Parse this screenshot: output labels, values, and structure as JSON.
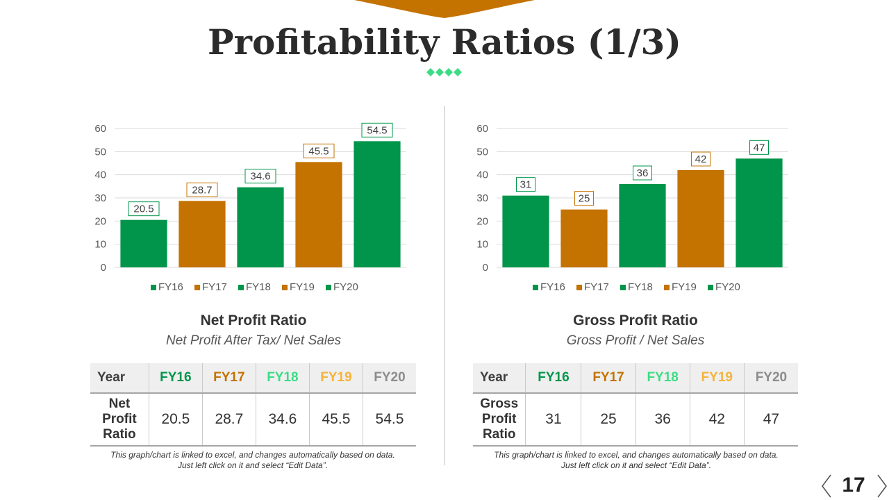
{
  "slide": {
    "title": "Profitability Ratios (1/3)",
    "page_number": "17",
    "colors": {
      "green": "#00954a",
      "orange": "#c47200",
      "light_green": "#3ddc84",
      "yellow": "#f5b33c",
      "grey": "#8c8c8c"
    }
  },
  "left": {
    "caption_title": "Net Profit Ratio",
    "caption_subtitle": "Net Profit After Tax/ Net Sales",
    "table": {
      "header": [
        "Year",
        "FY16",
        "FY17",
        "FY18",
        "FY19",
        "FY20"
      ],
      "row_label_lines": [
        "Net",
        "Profit",
        "Ratio"
      ],
      "values": [
        "20.5",
        "28.7",
        "34.6",
        "45.5",
        "54.5"
      ]
    },
    "note_lines": [
      "This graph/chart is linked to excel, and changes automatically based on data.",
      "Just left click on it and select “Edit Data”."
    ]
  },
  "right": {
    "caption_title": "Gross Profit Ratio",
    "caption_subtitle": "Gross Profit / Net Sales",
    "table": {
      "header": [
        "Year",
        "FY16",
        "FY17",
        "FY18",
        "FY19",
        "FY20"
      ],
      "row_label_lines": [
        "Gross",
        "Profit",
        "Ratio"
      ],
      "values": [
        "31",
        "25",
        "36",
        "42",
        "47"
      ]
    },
    "note_lines": [
      "This graph/chart is linked to excel, and changes automatically based on data.",
      "Just left click on it and select “Edit Data”."
    ]
  },
  "chart_data": [
    {
      "type": "bar",
      "categories": [
        "FY16",
        "FY17",
        "FY18",
        "FY19",
        "FY20"
      ],
      "values": [
        20.5,
        28.7,
        34.6,
        45.5,
        54.5
      ],
      "bar_colors": [
        "#00954a",
        "#c47200",
        "#00954a",
        "#c47200",
        "#00954a"
      ],
      "ylim": [
        0,
        60
      ],
      "yticks": [
        0,
        10,
        20,
        30,
        40,
        50,
        60
      ],
      "grid": true,
      "legend": "bottom",
      "legend_entries": [
        "FY16",
        "FY17",
        "FY18",
        "FY19",
        "FY20"
      ],
      "data_labels": [
        "20.5",
        "28.7",
        "34.6",
        "45.5",
        "54.5"
      ]
    },
    {
      "type": "bar",
      "categories": [
        "FY16",
        "FY17",
        "FY18",
        "FY19",
        "FY20"
      ],
      "values": [
        31,
        25,
        36,
        42,
        47
      ],
      "bar_colors": [
        "#00954a",
        "#c47200",
        "#00954a",
        "#c47200",
        "#00954a"
      ],
      "ylim": [
        0,
        60
      ],
      "yticks": [
        0,
        10,
        20,
        30,
        40,
        50,
        60
      ],
      "grid": true,
      "legend": "bottom",
      "legend_entries": [
        "FY16",
        "FY17",
        "FY18",
        "FY19",
        "FY20"
      ],
      "data_labels": [
        "31",
        "25",
        "36",
        "42",
        "47"
      ]
    }
  ]
}
